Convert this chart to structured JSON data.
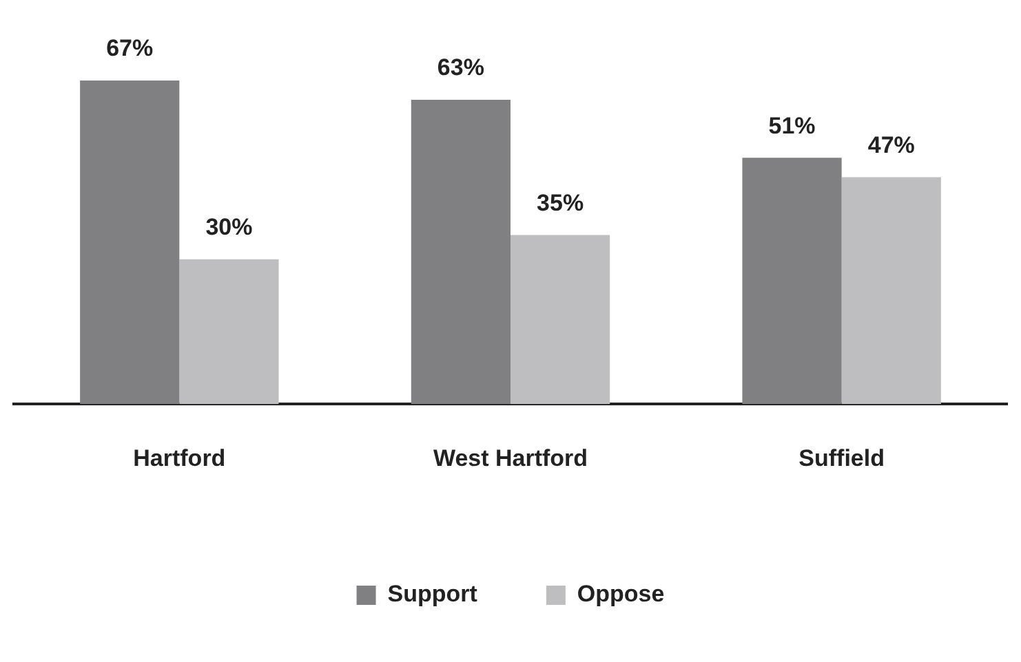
{
  "chart_data": {
    "type": "bar",
    "categories": [
      "Hartford",
      "West Hartford",
      "Suffield"
    ],
    "series": [
      {
        "name": "Support",
        "color": "#808082",
        "values": [
          67,
          63,
          51
        ],
        "value_labels": [
          "67%",
          "63%",
          "51%"
        ]
      },
      {
        "name": "Oppose",
        "color": "#bebec0",
        "values": [
          30,
          35,
          47
        ],
        "value_labels": [
          "30%",
          "35%",
          "47%"
        ]
      }
    ],
    "legend": "bottom",
    "grid": false
  }
}
